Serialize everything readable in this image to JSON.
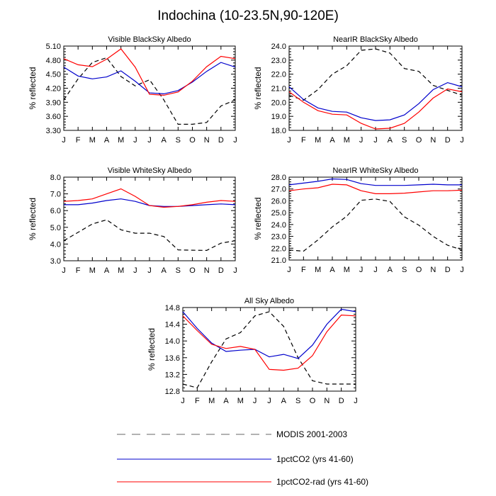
{
  "title": "Indochina (10-23.5N,90-120E)",
  "months": [
    "J",
    "F",
    "M",
    "A",
    "M",
    "J",
    "J",
    "A",
    "S",
    "O",
    "N",
    "D",
    "J"
  ],
  "series_styles": {
    "MODIS 2001-2003": {
      "color": "#000000",
      "dash": true
    },
    "1pctCO2 (yrs 41-60)": {
      "color": "#0000cc",
      "dash": false
    },
    "1pctCO2-rad (yrs 41-60)": {
      "color": "#ff0000",
      "dash": false
    }
  },
  "legend": [
    {
      "name": "MODIS 2001-2003",
      "color": "#999999",
      "dash": true
    },
    {
      "name": "1pctCO2 (yrs 41-60)",
      "color": "#0000cc",
      "dash": false
    },
    {
      "name": "1pctCO2-rad (yrs 41-60)",
      "color": "#ff0000",
      "dash": false
    }
  ],
  "chart_data": [
    {
      "type": "line",
      "title": "Visible BlackSky Albedo",
      "ylabel": "% reflected",
      "ylim": [
        3.3,
        5.1
      ],
      "yticks": [
        "3.30",
        "3.60",
        "3.90",
        "4.20",
        "4.50",
        "4.80",
        "5.10"
      ],
      "x": [
        "J",
        "F",
        "M",
        "A",
        "M",
        "J",
        "J",
        "A",
        "S",
        "O",
        "N",
        "D",
        "J"
      ],
      "series": [
        {
          "name": "MODIS 2001-2003",
          "values": [
            3.95,
            4.4,
            4.75,
            4.85,
            4.45,
            4.25,
            4.38,
            3.95,
            3.43,
            3.43,
            3.47,
            3.82,
            3.95
          ]
        },
        {
          "name": "1pctCO2 (yrs 41-60)",
          "values": [
            4.65,
            4.46,
            4.4,
            4.44,
            4.57,
            4.35,
            4.1,
            4.08,
            4.15,
            4.33,
            4.56,
            4.75,
            4.65
          ]
        },
        {
          "name": "1pctCO2-rad (yrs 41-60)",
          "values": [
            4.83,
            4.7,
            4.66,
            4.82,
            5.04,
            4.65,
            4.07,
            4.05,
            4.12,
            4.35,
            4.66,
            4.88,
            4.83
          ]
        }
      ]
    },
    {
      "type": "line",
      "title": "NearIR BlackSky Albedo",
      "ylabel": "% reflected",
      "ylim": [
        18.0,
        24.0
      ],
      "yticks": [
        "18.0",
        "19.0",
        "20.0",
        "21.0",
        "22.0",
        "23.0",
        "24.0"
      ],
      "x": [
        "J",
        "F",
        "M",
        "A",
        "M",
        "J",
        "J",
        "A",
        "S",
        "O",
        "N",
        "D",
        "J"
      ],
      "series": [
        {
          "name": "MODIS 2001-2003",
          "values": [
            20.5,
            20.15,
            20.9,
            22.0,
            22.6,
            23.7,
            23.8,
            23.5,
            22.4,
            22.2,
            21.2,
            20.85,
            20.5
          ]
        },
        {
          "name": "1pctCO2 (yrs 41-60)",
          "values": [
            21.1,
            20.2,
            19.6,
            19.35,
            19.3,
            18.9,
            18.7,
            18.75,
            19.1,
            19.9,
            20.9,
            21.4,
            21.1
          ]
        },
        {
          "name": "1pctCO2-rad (yrs 41-60)",
          "values": [
            20.75,
            20.0,
            19.4,
            19.15,
            19.1,
            18.5,
            18.1,
            18.15,
            18.5,
            19.3,
            20.3,
            20.95,
            20.75
          ]
        }
      ]
    },
    {
      "type": "line",
      "title": "Visible WhiteSky Albedo",
      "ylabel": "% reflected",
      "ylim": [
        3.0,
        8.0
      ],
      "yticks": [
        "3.0",
        "4.0",
        "5.0",
        "6.0",
        "7.0",
        "8.0"
      ],
      "x": [
        "J",
        "F",
        "M",
        "A",
        "M",
        "J",
        "J",
        "A",
        "S",
        "O",
        "N",
        "D",
        "J"
      ],
      "series": [
        {
          "name": "MODIS 2001-2003",
          "values": [
            4.2,
            4.7,
            5.2,
            5.45,
            4.85,
            4.65,
            4.65,
            4.45,
            3.65,
            3.63,
            3.62,
            4.05,
            4.2
          ]
        },
        {
          "name": "1pctCO2 (yrs 41-60)",
          "values": [
            6.35,
            6.35,
            6.45,
            6.6,
            6.7,
            6.55,
            6.3,
            6.25,
            6.25,
            6.3,
            6.35,
            6.4,
            6.35
          ]
        },
        {
          "name": "1pctCO2-rad (yrs 41-60)",
          "values": [
            6.55,
            6.6,
            6.7,
            7.0,
            7.3,
            6.85,
            6.3,
            6.2,
            6.25,
            6.35,
            6.5,
            6.6,
            6.55
          ]
        }
      ]
    },
    {
      "type": "line",
      "title": "NearIR WhiteSky Albedo",
      "ylabel": "% reflected",
      "ylim": [
        21.0,
        28.0
      ],
      "yticks": [
        "21.0",
        "22.0",
        "23.0",
        "24.0",
        "25.0",
        "26.0",
        "27.0",
        "28.0"
      ],
      "x": [
        "J",
        "F",
        "M",
        "A",
        "M",
        "J",
        "J",
        "A",
        "S",
        "O",
        "N",
        "D",
        "J"
      ],
      "series": [
        {
          "name": "MODIS 2001-2003",
          "values": [
            21.85,
            21.75,
            22.7,
            23.8,
            24.7,
            26.05,
            26.15,
            25.95,
            24.65,
            23.95,
            23.0,
            22.25,
            21.85
          ]
        },
        {
          "name": "1pctCO2 (yrs 41-60)",
          "values": [
            27.35,
            27.5,
            27.65,
            27.85,
            27.8,
            27.45,
            27.3,
            27.3,
            27.3,
            27.35,
            27.4,
            27.35,
            27.35
          ]
        },
        {
          "name": "1pctCO2-rad (yrs 41-60)",
          "values": [
            26.85,
            27.0,
            27.1,
            27.4,
            27.35,
            26.85,
            26.6,
            26.6,
            26.65,
            26.75,
            26.85,
            26.85,
            26.9
          ]
        }
      ]
    },
    {
      "type": "line",
      "title": "All Sky Albedo",
      "ylabel": "% reflected",
      "ylim": [
        12.8,
        14.8
      ],
      "yticks": [
        "12.8",
        "13.2",
        "13.6",
        "14.0",
        "14.4",
        "14.8"
      ],
      "x": [
        "J",
        "F",
        "M",
        "A",
        "M",
        "J",
        "J",
        "A",
        "S",
        "O",
        "N",
        "D",
        "J"
      ],
      "series": [
        {
          "name": "MODIS 2001-2003",
          "values": [
            12.97,
            12.88,
            13.5,
            14.05,
            14.2,
            14.6,
            14.7,
            14.35,
            13.6,
            13.05,
            12.97,
            12.97,
            12.97
          ]
        },
        {
          "name": "1pctCO2 (yrs 41-60)",
          "values": [
            14.7,
            14.3,
            13.95,
            13.75,
            13.78,
            13.8,
            13.62,
            13.68,
            13.58,
            13.9,
            14.4,
            14.76,
            14.7
          ]
        },
        {
          "name": "1pctCO2-rad (yrs 41-60)",
          "values": [
            14.6,
            14.25,
            13.92,
            13.82,
            13.87,
            13.8,
            13.32,
            13.3,
            13.35,
            13.65,
            14.22,
            14.62,
            14.6
          ]
        }
      ]
    }
  ]
}
